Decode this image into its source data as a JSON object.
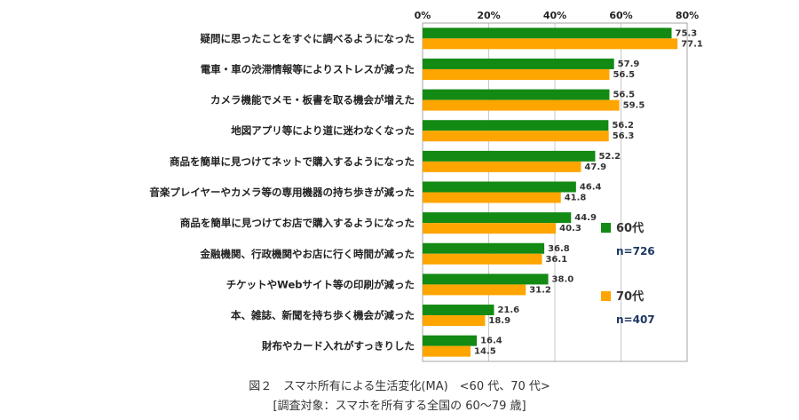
{
  "chart_data": {
    "type": "bar",
    "orientation": "horizontal",
    "categories": [
      "疑問に思ったことをすぐに調べるようになった",
      "電車・車の渋滞情報等によりストレスが減った",
      "カメラ機能でメモ・板書を取る機会が増えた",
      "地図アプリ等により道に迷わなくなった",
      "商品を簡単に見つけてネットで購入するようになった",
      "音楽プレイヤーやカメラ等の専用機器の持ち歩きが減った",
      "商品を簡単に見つけてお店で購入するようになった",
      "金融機関、行政機関やお店に行く時間が減った",
      "チケットやWebサイト等の印刷が減った",
      "本、雑誌、新聞を持ち歩く機会が減った",
      "財布やカード入れがすっきりした"
    ],
    "series": [
      {
        "name": "60代",
        "n_label": "n=726",
        "color": "#138a13",
        "values": [
          75.3,
          57.9,
          56.5,
          56.2,
          52.2,
          46.4,
          44.9,
          36.8,
          38.0,
          21.6,
          16.4
        ]
      },
      {
        "name": "70代",
        "n_label": "n=407",
        "color": "#ffa500",
        "values": [
          77.1,
          56.5,
          59.5,
          56.3,
          47.9,
          41.8,
          40.3,
          36.1,
          31.2,
          18.9,
          14.5
        ]
      }
    ],
    "xlim": [
      0,
      80
    ],
    "x_ticks": [
      "0%",
      "20%",
      "40%",
      "60%",
      "80%"
    ],
    "x_axis_position": "top",
    "grid": true,
    "legend_placement": "right",
    "caption": "図２　スマホ所有による生活変化(MA)　<60 代、70 代>",
    "subcaption": "[調査対象：スマホを所有する全国の 60～79 歳]"
  }
}
